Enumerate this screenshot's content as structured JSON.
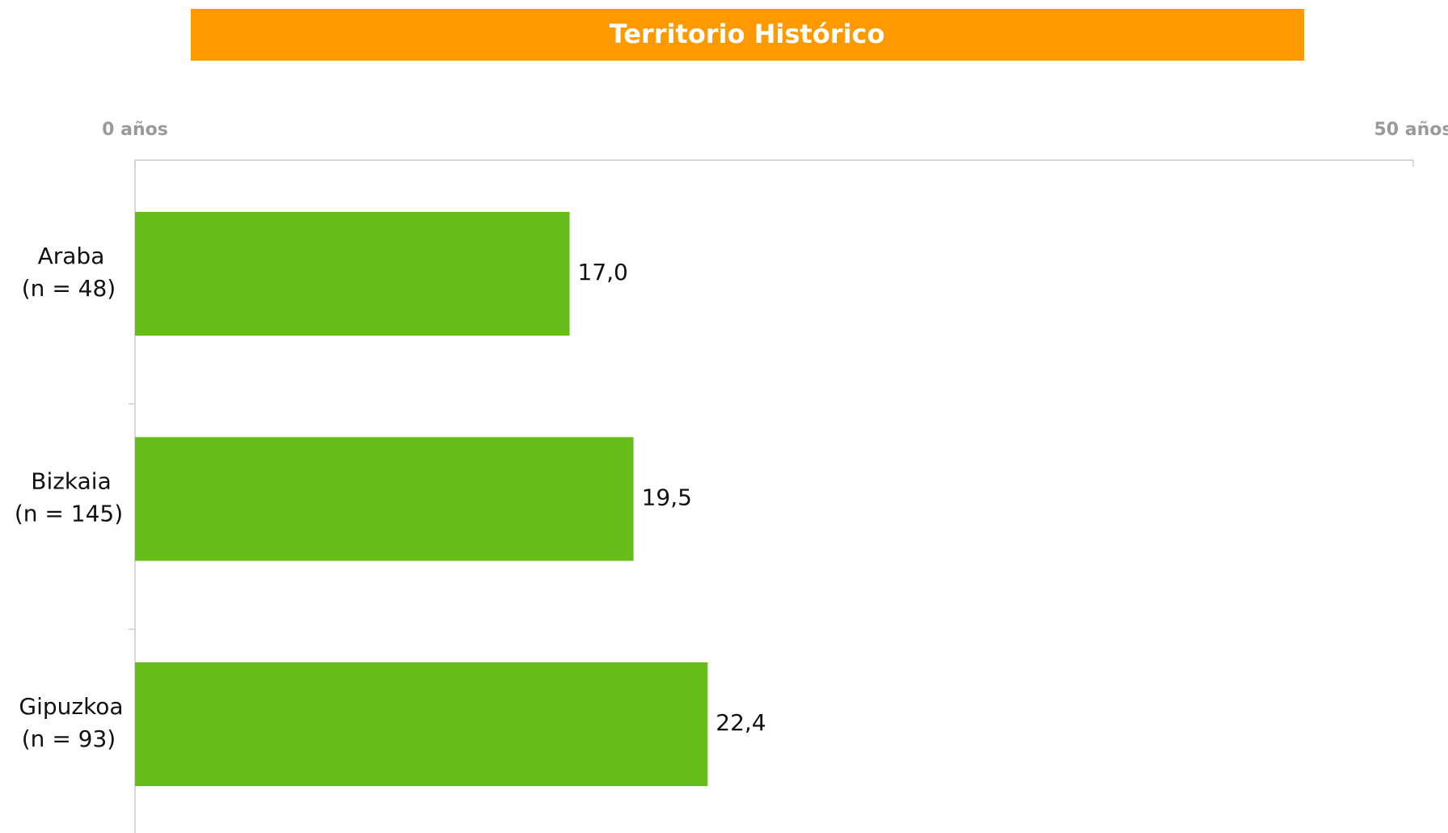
{
  "chart_data": {
    "type": "hbar",
    "title": "Territorio Histórico",
    "title_color": "#ff9900",
    "categories": [
      "Araba",
      "Bizkaia",
      "Gipuzkoa"
    ],
    "category_notes": [
      "(n = 48)",
      "(n = 145)",
      "(n = 93)"
    ],
    "values": [
      17.0,
      19.5,
      22.4
    ],
    "value_labels": [
      "17,0",
      "19,5",
      "22,4"
    ],
    "color": "#66bd1a",
    "xlim": [
      0,
      50
    ],
    "xticks": [
      {
        "value": 0,
        "label": "0 años"
      },
      {
        "value": 50,
        "label": "50 años"
      }
    ]
  }
}
